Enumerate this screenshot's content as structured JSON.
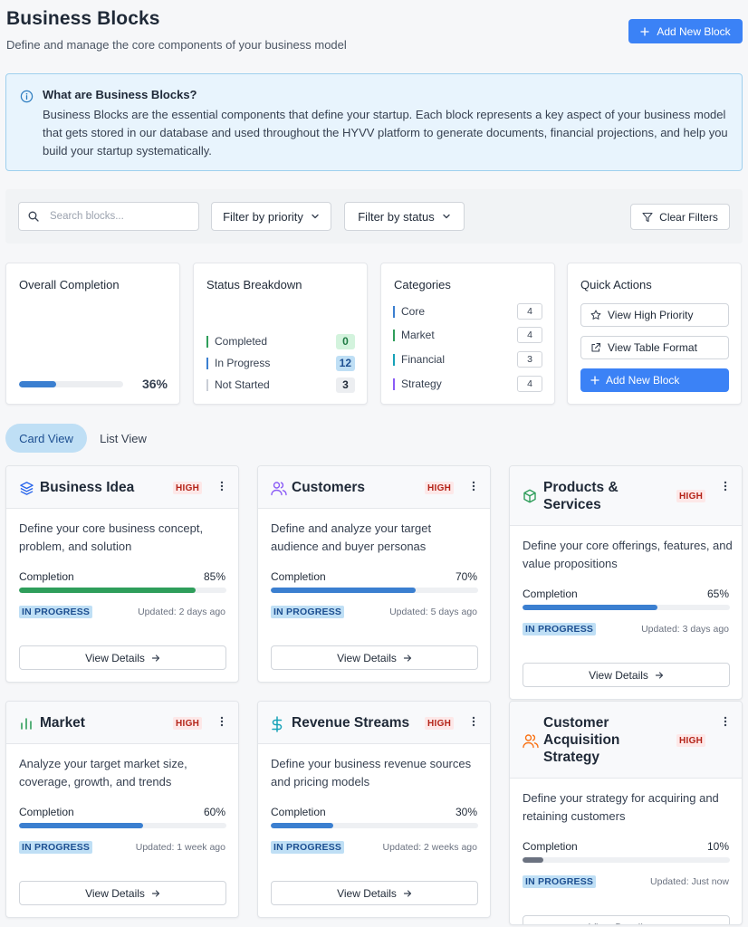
{
  "header": {
    "title": "Business Blocks",
    "subtitle": "Define and manage the core components of your business model",
    "add_button": "Add New Block"
  },
  "info": {
    "title": "What are Business Blocks?",
    "text": "Business Blocks are the essential components that define your startup. Each block represents a key aspect of your business model that gets stored in our database and used throughout the HYVV platform to generate documents, financial projections, and help you build your startup systematically."
  },
  "filters": {
    "search_placeholder": "Search blocks...",
    "priority": "Filter by priority",
    "status": "Filter by status",
    "clear": "Clear Filters"
  },
  "overall": {
    "title": "Overall Completion",
    "percent_label": "36%",
    "percent_value": 36
  },
  "status_breakdown": {
    "title": "Status Breakdown",
    "rows": [
      {
        "label": "Completed",
        "count": "0",
        "color": "#2f9e5b",
        "badge_bg": "#d3f3dd",
        "badge_fg": "#1e7a43"
      },
      {
        "label": "In Progress",
        "count": "12",
        "color": "#3b7fd0",
        "badge_bg": "#bfdff5",
        "badge_fg": "#1d4f91"
      },
      {
        "label": "Not Started",
        "count": "3",
        "color": "#c9ced6",
        "badge_bg": "#eceef1",
        "badge_fg": "#1f2937"
      }
    ]
  },
  "categories": {
    "title": "Categories",
    "rows": [
      {
        "label": "Core",
        "count": "4",
        "color": "#3b7fd0"
      },
      {
        "label": "Market",
        "count": "4",
        "color": "#2f9e5b"
      },
      {
        "label": "Financial",
        "count": "3",
        "color": "#17a2b8"
      },
      {
        "label": "Strategy",
        "count": "4",
        "color": "#8b5cf6"
      }
    ]
  },
  "quick_actions": {
    "title": "Quick Actions",
    "view_high": "View High Priority",
    "view_table": "View Table Format",
    "add_new": "Add New Block"
  },
  "views": {
    "card": "Card View",
    "list": "List View"
  },
  "blocks": [
    {
      "title": "Business Idea",
      "priority": "HIGH",
      "icon": "layers-icon",
      "icon_color": "#2563eb",
      "desc": "Define your core business concept, problem, and solution",
      "completion_label": "Completion",
      "percent_label": "85%",
      "percent": 85,
      "fill_color": "#2f9e5b",
      "status": "IN PROGRESS",
      "updated": "Updated: 2 days ago",
      "details": "View Details"
    },
    {
      "title": "Customers",
      "priority": "HIGH",
      "icon": "users-icon",
      "icon_color": "#8b5cf6",
      "desc": "Define and analyze your target audience and buyer personas",
      "completion_label": "Completion",
      "percent_label": "70%",
      "percent": 70,
      "fill_color": "#3b7fd0",
      "status": "IN PROGRESS",
      "updated": "Updated: 5 days ago",
      "details": "View Details"
    },
    {
      "title": "Products & Services",
      "priority": "HIGH",
      "icon": "box-icon",
      "icon_color": "#2f9e5b",
      "desc": "Define your core offerings, features, and value propositions",
      "completion_label": "Completion",
      "percent_label": "65%",
      "percent": 65,
      "fill_color": "#3b7fd0",
      "status": "IN PROGRESS",
      "updated": "Updated: 3 days ago",
      "details": "View Details"
    },
    {
      "title": "Market",
      "priority": "HIGH",
      "icon": "bar-chart-icon",
      "icon_color": "#2f9e5b",
      "desc": "Analyze your target market size, coverage, growth, and trends",
      "completion_label": "Completion",
      "percent_label": "60%",
      "percent": 60,
      "fill_color": "#3b7fd0",
      "status": "IN PROGRESS",
      "updated": "Updated: 1 week ago",
      "details": "View Details"
    },
    {
      "title": "Revenue Streams",
      "priority": "HIGH",
      "icon": "dollar-icon",
      "icon_color": "#17a2b8",
      "desc": "Define your business revenue sources and pricing models",
      "completion_label": "Completion",
      "percent_label": "30%",
      "percent": 30,
      "fill_color": "#3b7fd0",
      "status": "IN PROGRESS",
      "updated": "Updated: 2 weeks ago",
      "details": "View Details"
    },
    {
      "title": "Customer Acquisition Strategy",
      "priority": "HIGH",
      "icon": "users-icon",
      "icon_color": "#f97316",
      "desc": "Define your strategy for acquiring and retaining customers",
      "completion_label": "Completion",
      "percent_label": "10%",
      "percent": 10,
      "fill_color": "#6b7280",
      "status": "IN PROGRESS",
      "updated": "Updated: Just now",
      "details": "View Details"
    }
  ]
}
